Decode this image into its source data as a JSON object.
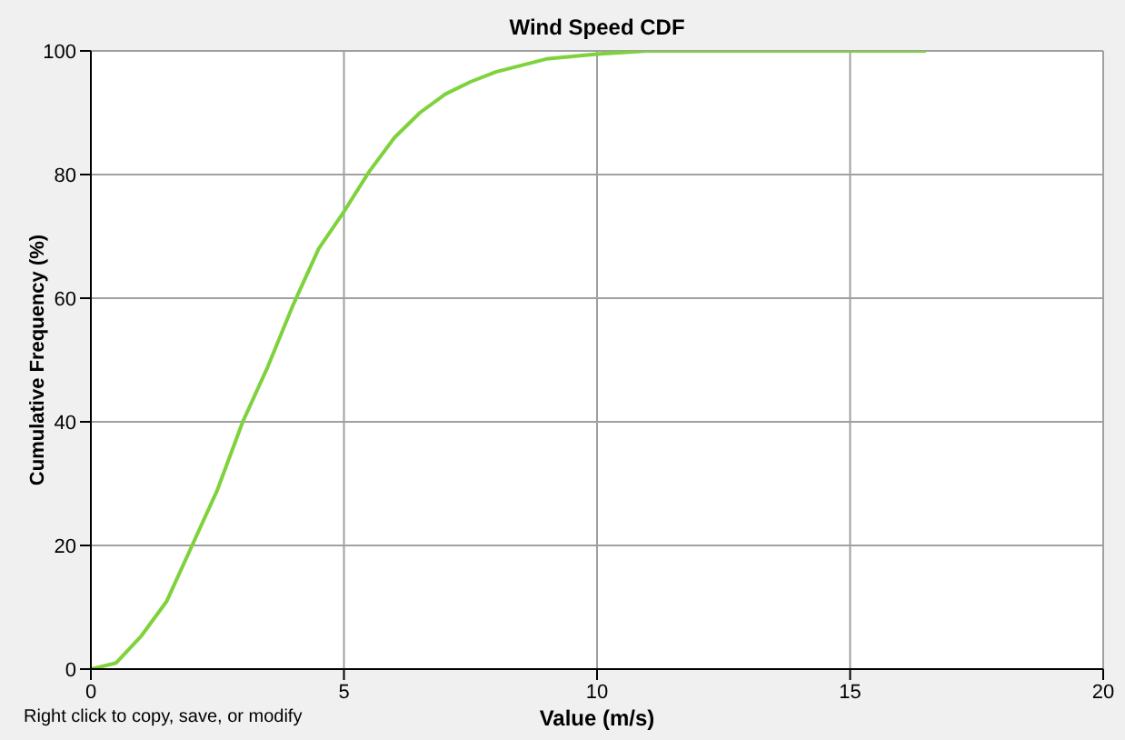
{
  "chart_data": {
    "type": "line",
    "title": "Wind Speed CDF",
    "xlabel": "Value (m/s)",
    "ylabel": "Cumulative Frequency (%)",
    "annotations": [
      "Right click to copy, save, or modify"
    ],
    "x": [
      0,
      0.5,
      1,
      1.5,
      2,
      2.5,
      3,
      3.5,
      4,
      4.5,
      5,
      5.5,
      6,
      6.5,
      7,
      7.5,
      8,
      9,
      10,
      11,
      16.5
    ],
    "series": [
      {
        "color": "#7ed23c",
        "values": [
          0,
          1,
          5.4,
          11,
          20,
          29,
          40,
          49,
          59,
          68,
          74,
          80.5,
          86,
          90,
          93,
          95,
          96.6,
          98.7,
          99.5,
          100,
          100
        ]
      }
    ],
    "xlim": [
      0,
      20
    ],
    "xticks": [
      0,
      5,
      10,
      15,
      20
    ],
    "ylim": [
      0,
      100
    ],
    "yticks": [
      0,
      20,
      40,
      60,
      80,
      100
    ],
    "grid": true,
    "legend": false,
    "marker": "none",
    "line_style": "solid"
  }
}
